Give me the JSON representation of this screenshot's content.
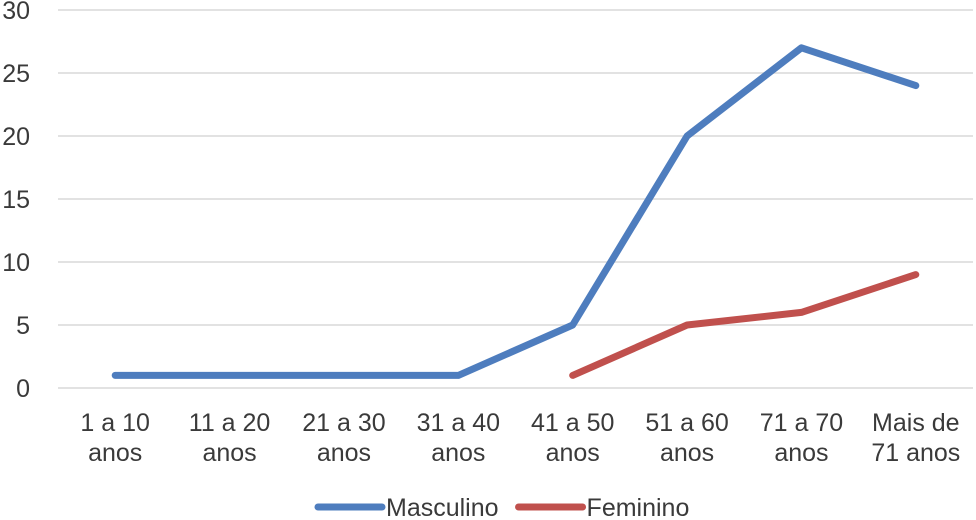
{
  "chart_data": {
    "type": "line",
    "categories": [
      "1 a 10 anos",
      "11 a 20 anos",
      "21 a 30 anos",
      "31 a 40 anos",
      "41 a 50 anos",
      "51 a 60 anos",
      "71 a 70 anos",
      "Mais de 71 anos"
    ],
    "category_tick_lines": [
      [
        "1 a 10",
        "anos"
      ],
      [
        "11 a 20",
        "anos"
      ],
      [
        "21 a 30",
        "anos"
      ],
      [
        "31 a 40",
        "anos"
      ],
      [
        "41 a 50",
        "anos"
      ],
      [
        "51 a 60",
        "anos"
      ],
      [
        "71 a 70",
        "anos"
      ],
      [
        "Mais de",
        "71 anos"
      ]
    ],
    "series": [
      {
        "name": "Masculino",
        "color": "#4E7DBE",
        "values": [
          1,
          1,
          1,
          1,
          5,
          20,
          27,
          24
        ]
      },
      {
        "name": "Feminino",
        "color": "#C0504D",
        "values": [
          null,
          null,
          null,
          null,
          1,
          5,
          6,
          9
        ]
      }
    ],
    "yticks": [
      0,
      5,
      10,
      15,
      20,
      25,
      30
    ],
    "ylim": [
      0,
      30
    ],
    "grid": "horizontal",
    "legend_position": "bottom"
  },
  "colors": {
    "background": "#FFFFFF",
    "gridline": "#D9D9D9",
    "text": "#3A3A3A"
  }
}
